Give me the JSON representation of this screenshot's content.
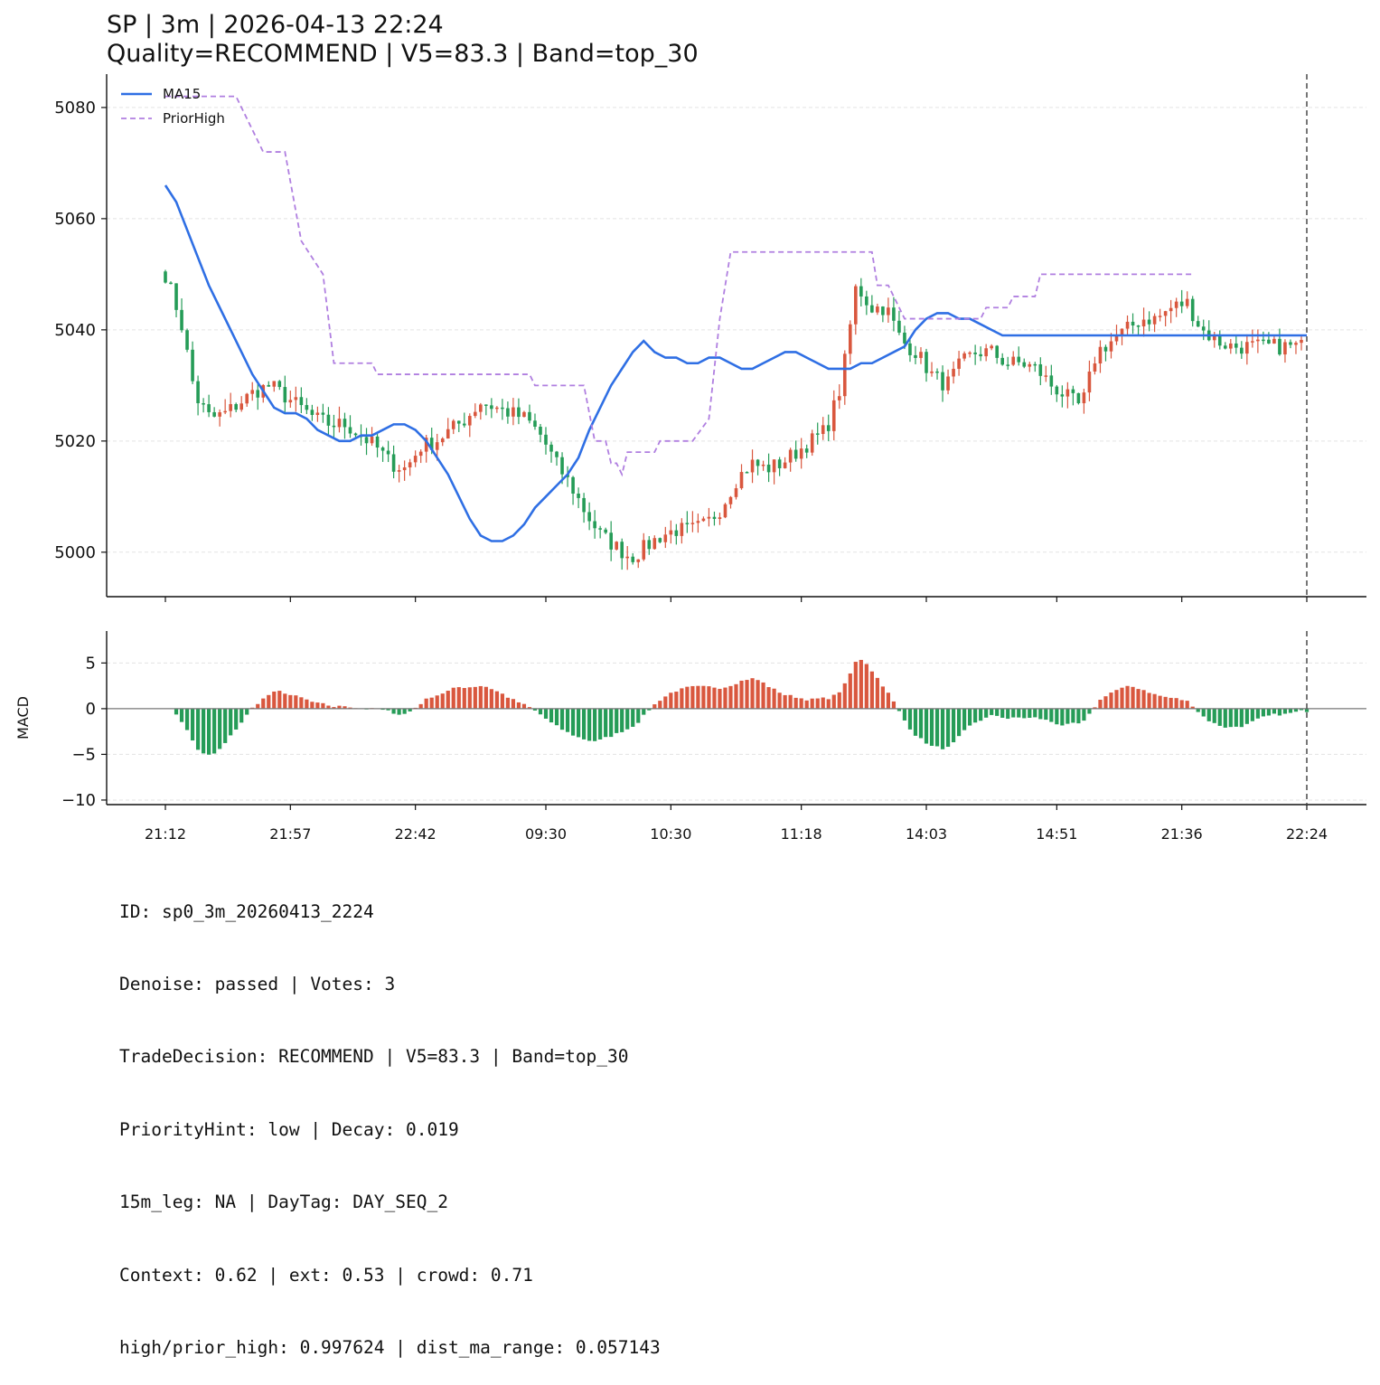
{
  "title_line1": "SP | 3m | 2026-04-13 22:24",
  "title_line2": "Quality=RECOMMEND | V5=83.3 | Band=top_30",
  "info_lines": [
    "ID: sp0_3m_20260413_2224",
    "Denoise: passed | Votes: 3",
    "TradeDecision: RECOMMEND | V5=83.3 | Band=top_30",
    "PriorityHint: low | Decay: 0.019",
    "15m_leg: NA | DayTag: DAY_SEQ_2",
    "Context: 0.62 | ext: 0.53 | crowd: 0.71",
    "high/prior_high: 0.997624 | dist_ma_range: 0.057143"
  ],
  "colors": {
    "up": "#d9573e",
    "down": "#259c57",
    "ma": "#2f6fe4",
    "prior": "#b07fe0",
    "grid": "#e3e3e3",
    "axis": "#111111",
    "vline": "#555555"
  },
  "chart_data": [
    {
      "type": "candlestick",
      "n_bars": 210,
      "xticks": [
        {
          "i": 0,
          "label": "21:12"
        },
        {
          "i": 23,
          "label": "21:57"
        },
        {
          "i": 46,
          "label": "22:42"
        },
        {
          "i": 70,
          "label": "09:30"
        },
        {
          "i": 93,
          "label": "10:30"
        },
        {
          "i": 117,
          "label": "11:18"
        },
        {
          "i": 140,
          "label": "14:03"
        },
        {
          "i": 164,
          "label": "14:51"
        },
        {
          "i": 187,
          "label": "21:36"
        },
        {
          "i": 210,
          "label": "22:24"
        }
      ],
      "ylim": [
        4992,
        5086
      ],
      "yticks": [
        5000,
        5020,
        5040,
        5060,
        5080
      ],
      "grid": true,
      "legend": "top-left",
      "series": [
        {
          "name": "MA15",
          "style": "solid",
          "points": [
            [
              0,
              5066
            ],
            [
              2,
              5063
            ],
            [
              4,
              5058
            ],
            [
              6,
              5053
            ],
            [
              8,
              5048
            ],
            [
              10,
              5044
            ],
            [
              12,
              5040
            ],
            [
              14,
              5036
            ],
            [
              16,
              5032
            ],
            [
              18,
              5029
            ],
            [
              20,
              5026
            ],
            [
              22,
              5025
            ],
            [
              24,
              5025
            ],
            [
              26,
              5024
            ],
            [
              28,
              5022
            ],
            [
              30,
              5021
            ],
            [
              32,
              5020
            ],
            [
              34,
              5020
            ],
            [
              36,
              5021
            ],
            [
              38,
              5021
            ],
            [
              40,
              5022
            ],
            [
              42,
              5023
            ],
            [
              44,
              5023
            ],
            [
              46,
              5022
            ],
            [
              48,
              5020
            ],
            [
              50,
              5017
            ],
            [
              52,
              5014
            ],
            [
              54,
              5010
            ],
            [
              56,
              5006
            ],
            [
              58,
              5003
            ],
            [
              60,
              5002
            ],
            [
              62,
              5002
            ],
            [
              64,
              5003
            ],
            [
              66,
              5005
            ],
            [
              68,
              5008
            ],
            [
              70,
              5010
            ],
            [
              72,
              5012
            ],
            [
              74,
              5014
            ],
            [
              76,
              5017
            ],
            [
              78,
              5022
            ],
            [
              80,
              5026
            ],
            [
              82,
              5030
            ],
            [
              84,
              5033
            ],
            [
              86,
              5036
            ],
            [
              88,
              5038
            ],
            [
              90,
              5036
            ],
            [
              92,
              5035
            ],
            [
              94,
              5035
            ],
            [
              96,
              5034
            ],
            [
              98,
              5034
            ],
            [
              100,
              5035
            ],
            [
              102,
              5035
            ],
            [
              104,
              5034
            ],
            [
              106,
              5033
            ],
            [
              108,
              5033
            ],
            [
              110,
              5034
            ],
            [
              112,
              5035
            ],
            [
              114,
              5036
            ],
            [
              116,
              5036
            ],
            [
              118,
              5035
            ],
            [
              120,
              5034
            ],
            [
              122,
              5033
            ],
            [
              124,
              5033
            ],
            [
              126,
              5033
            ],
            [
              128,
              5034
            ],
            [
              130,
              5034
            ],
            [
              132,
              5035
            ],
            [
              134,
              5036
            ],
            [
              136,
              5037
            ],
            [
              138,
              5040
            ],
            [
              140,
              5042
            ],
            [
              142,
              5043
            ],
            [
              144,
              5043
            ],
            [
              146,
              5042
            ],
            [
              148,
              5042
            ],
            [
              150,
              5041
            ],
            [
              152,
              5040
            ],
            [
              154,
              5039
            ],
            [
              156,
              5039
            ],
            [
              158,
              5039
            ],
            [
              160,
              5039
            ],
            [
              162,
              5039
            ],
            [
              164,
              5039
            ],
            [
              166,
              5039
            ],
            [
              168,
              5039
            ],
            [
              170,
              5039
            ],
            [
              172,
              5039
            ],
            [
              174,
              5039
            ],
            [
              176,
              5039
            ],
            [
              178,
              5039
            ],
            [
              180,
              5039
            ],
            [
              182,
              5039
            ],
            [
              184,
              5039
            ],
            [
              186,
              5039
            ],
            [
              188,
              5039
            ],
            [
              190,
              5039
            ],
            [
              192,
              5039
            ],
            [
              194,
              5039
            ],
            [
              196,
              5039
            ],
            [
              198,
              5039
            ],
            [
              200,
              5039
            ],
            [
              202,
              5039
            ],
            [
              204,
              5039
            ],
            [
              206,
              5039
            ],
            [
              208,
              5039
            ],
            [
              210,
              5039
            ]
          ]
        },
        {
          "name": "PriorHigh",
          "style": "dashed",
          "points": [
            [
              0,
              5082
            ],
            [
              13,
              5082
            ],
            [
              15,
              5078
            ],
            [
              18,
              5072
            ],
            [
              22,
              5072
            ],
            [
              25,
              5056
            ],
            [
              29,
              5050
            ],
            [
              31,
              5034
            ],
            [
              38,
              5034
            ],
            [
              39,
              5032
            ],
            [
              67,
              5032
            ],
            [
              68,
              5030
            ],
            [
              77,
              5030
            ],
            [
              79,
              5020
            ],
            [
              81,
              5020
            ],
            [
              82,
              5016
            ],
            [
              83,
              5016
            ],
            [
              84,
              5014
            ],
            [
              85,
              5018
            ],
            [
              90,
              5018
            ],
            [
              91,
              5020
            ],
            [
              97,
              5020
            ],
            [
              100,
              5024
            ],
            [
              102,
              5042
            ],
            [
              104,
              5054
            ],
            [
              130,
              5054
            ],
            [
              131,
              5048
            ],
            [
              133,
              5048
            ],
            [
              136,
              5042
            ],
            [
              150,
              5042
            ],
            [
              151,
              5044
            ],
            [
              155,
              5044
            ],
            [
              156,
              5046
            ],
            [
              160,
              5046
            ],
            [
              161,
              5050
            ],
            [
              189,
              5050
            ]
          ]
        }
      ]
    },
    {
      "type": "bar",
      "ylabel": "MACD",
      "ylim": [
        -10.5,
        8.5
      ],
      "yticks": [
        -10,
        -5,
        0,
        5
      ],
      "grid": true
    }
  ]
}
